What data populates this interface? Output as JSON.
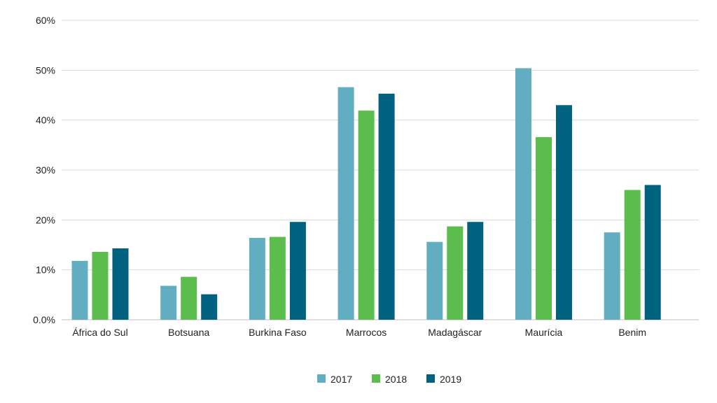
{
  "chart_data": {
    "type": "bar",
    "categories": [
      "África do Sul",
      "Botsuana",
      "Burkina Faso",
      "Marrocos",
      "Madagáscar",
      "Maurícia",
      "Benim"
    ],
    "series": [
      {
        "name": "2017",
        "color": "#62aec0",
        "values": [
          11.8,
          6.8,
          16.4,
          46.6,
          15.6,
          50.4,
          17.5
        ]
      },
      {
        "name": "2018",
        "color": "#5bbd4b",
        "values": [
          13.6,
          8.6,
          16.6,
          41.9,
          18.7,
          36.6,
          26.0
        ]
      },
      {
        "name": "2019",
        "color": "#00627f",
        "values": [
          14.3,
          5.1,
          19.6,
          45.3,
          19.6,
          43.0,
          27.0
        ]
      }
    ],
    "ylim": [
      0,
      60
    ],
    "yticks": [
      {
        "value": 0,
        "label": "0.0%"
      },
      {
        "value": 10,
        "label": "10%"
      },
      {
        "value": 20,
        "label": "20%"
      },
      {
        "value": 30,
        "label": "30%"
      },
      {
        "value": 40,
        "label": "40%"
      },
      {
        "value": 50,
        "label": "50%"
      },
      {
        "value": 60,
        "label": "60%"
      }
    ],
    "grid": true,
    "gridColor": "#d9d9d9",
    "axisColor": "#bfbfbf",
    "legend_position": "bottom-center"
  }
}
